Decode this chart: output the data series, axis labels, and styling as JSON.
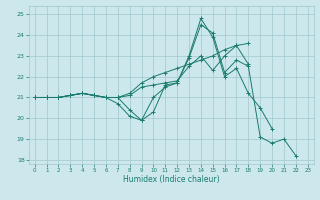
{
  "xlabel": "Humidex (Indice chaleur)",
  "xlim": [
    -0.5,
    23.5
  ],
  "ylim": [
    17.8,
    25.4
  ],
  "yticks": [
    18,
    19,
    20,
    21,
    22,
    23,
    24,
    25
  ],
  "xticks": [
    0,
    1,
    2,
    3,
    4,
    5,
    6,
    7,
    8,
    9,
    10,
    11,
    12,
    13,
    14,
    15,
    16,
    17,
    18,
    19,
    20,
    21,
    22,
    23
  ],
  "bg_color": "#cce8ec",
  "grid_color": "#a0c8cc",
  "line_color": "#1a7a6e",
  "lines": [
    {
      "x": [
        0,
        1,
        2,
        3,
        4,
        5,
        6,
        7,
        8,
        9,
        10,
        11,
        12,
        13,
        14,
        15,
        16,
        17,
        18,
        19,
        20,
        21,
        22
      ],
      "y": [
        21.0,
        21.0,
        21.0,
        21.1,
        21.2,
        21.1,
        21.0,
        21.0,
        20.4,
        19.9,
        20.3,
        21.6,
        21.7,
        22.9,
        24.5,
        24.1,
        22.2,
        22.8,
        22.5,
        19.1,
        18.8,
        19.0,
        18.2
      ]
    },
    {
      "x": [
        0,
        1,
        2,
        3,
        4,
        5,
        6,
        7,
        8,
        9,
        10,
        11,
        12,
        13,
        14,
        15,
        16,
        17,
        18,
        19,
        20,
        21,
        22
      ],
      "y": [
        21.0,
        21.0,
        21.0,
        21.1,
        21.2,
        21.1,
        21.0,
        20.7,
        20.1,
        19.9,
        21.0,
        21.5,
        21.7,
        23.0,
        24.8,
        23.9,
        22.0,
        22.4,
        21.2,
        20.5,
        19.5,
        null,
        null
      ]
    },
    {
      "x": [
        0,
        1,
        2,
        3,
        4,
        5,
        6,
        7,
        8,
        9,
        10,
        11,
        12,
        13,
        14,
        15,
        16,
        17,
        18
      ],
      "y": [
        21.0,
        21.0,
        21.0,
        21.1,
        21.2,
        21.1,
        21.0,
        21.0,
        21.1,
        21.5,
        21.6,
        21.7,
        21.8,
        22.5,
        23.0,
        22.3,
        23.0,
        23.5,
        22.6
      ]
    },
    {
      "x": [
        0,
        1,
        2,
        3,
        4,
        5,
        6,
        7,
        8,
        9,
        10,
        11,
        12,
        13,
        14,
        15,
        16,
        17,
        18
      ],
      "y": [
        21.0,
        21.0,
        21.0,
        21.1,
        21.2,
        21.1,
        21.0,
        21.0,
        21.2,
        21.7,
        22.0,
        22.2,
        22.4,
        22.6,
        22.8,
        23.0,
        23.3,
        23.5,
        23.6
      ]
    }
  ]
}
